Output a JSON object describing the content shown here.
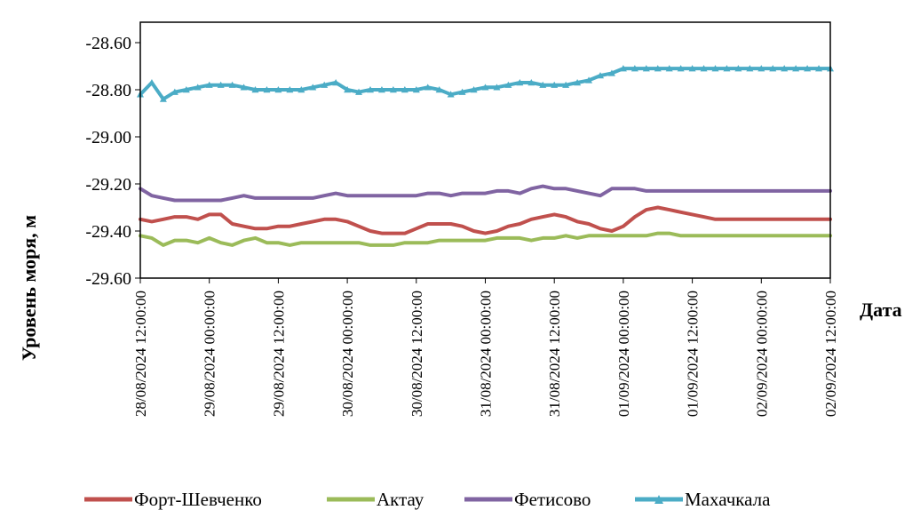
{
  "chart_data": {
    "type": "line",
    "title": "",
    "xlabel": "Дата",
    "ylabel": "Уровень моря, м",
    "ylim": [
      -29.6,
      -28.5
    ],
    "y_ticks": [
      "-28.60",
      "-28.80",
      "-29.00",
      "-29.20",
      "-29.40",
      "-29.60"
    ],
    "x_tick_labels": [
      "28/08/2024 12:00:00",
      "29/08/2024 00:00:00",
      "29/08/2024 12:00:00",
      "30/08/2024 00:00:00",
      "30/08/2024 12:00:00",
      "31/08/2024 00:00:00",
      "31/08/2024 12:00:00",
      "01/09/2024 00:00:00",
      "01/09/2024 12:00:00",
      "02/09/2024 00:00:00",
      "02/09/2024 12:00:00"
    ],
    "x_hours": [
      0,
      2,
      4,
      6,
      8,
      10,
      12,
      14,
      16,
      18,
      20,
      22,
      24,
      26,
      28,
      30,
      32,
      34,
      36,
      38,
      40,
      42,
      44,
      46,
      48,
      50,
      52,
      54,
      56,
      58,
      60,
      62,
      64,
      66,
      68,
      70,
      72,
      74,
      76,
      78,
      80,
      82,
      84,
      86,
      88,
      90,
      92,
      94,
      96,
      98,
      100,
      102,
      104,
      106,
      108,
      110,
      112,
      114,
      116,
      118,
      120
    ],
    "grid": false,
    "legend_position": "bottom",
    "series": [
      {
        "name": "Форт-Шевченко",
        "color": "#C0504D",
        "marker": "none",
        "values": [
          -29.35,
          -29.36,
          -29.35,
          -29.34,
          -29.34,
          -29.35,
          -29.33,
          -29.33,
          -29.37,
          -29.38,
          -29.39,
          -29.39,
          -29.38,
          -29.38,
          -29.37,
          -29.36,
          -29.35,
          -29.35,
          -29.36,
          -29.38,
          -29.4,
          -29.41,
          -29.41,
          -29.41,
          -29.39,
          -29.37,
          -29.37,
          -29.37,
          -29.38,
          -29.4,
          -29.41,
          -29.4,
          -29.38,
          -29.37,
          -29.35,
          -29.34,
          -29.33,
          -29.34,
          -29.36,
          -29.37,
          -29.39,
          -29.4,
          -29.38,
          -29.34,
          -29.31,
          -29.3,
          -29.31,
          -29.32,
          -29.33,
          -29.34,
          -29.35,
          -29.35,
          -29.35,
          -29.35,
          -29.35,
          -29.35,
          -29.35,
          -29.35,
          -29.35,
          -29.35,
          -29.35
        ]
      },
      {
        "name": "Актау",
        "color": "#9BBB59",
        "marker": "none",
        "values": [
          -29.42,
          -29.43,
          -29.46,
          -29.44,
          -29.44,
          -29.45,
          -29.43,
          -29.45,
          -29.46,
          -29.44,
          -29.43,
          -29.45,
          -29.45,
          -29.46,
          -29.45,
          -29.45,
          -29.45,
          -29.45,
          -29.45,
          -29.45,
          -29.46,
          -29.46,
          -29.46,
          -29.45,
          -29.45,
          -29.45,
          -29.44,
          -29.44,
          -29.44,
          -29.44,
          -29.44,
          -29.43,
          -29.43,
          -29.43,
          -29.44,
          -29.43,
          -29.43,
          -29.42,
          -29.43,
          -29.42,
          -29.42,
          -29.42,
          -29.42,
          -29.42,
          -29.42,
          -29.41,
          -29.41,
          -29.42,
          -29.42,
          -29.42,
          -29.42,
          -29.42,
          -29.42,
          -29.42,
          -29.42,
          -29.42,
          -29.42,
          -29.42,
          -29.42,
          -29.42,
          -29.42
        ]
      },
      {
        "name": "Фетисово",
        "color": "#8064A2",
        "marker": "none",
        "values": [
          -29.22,
          -29.25,
          -29.26,
          -29.27,
          -29.27,
          -29.27,
          -29.27,
          -29.27,
          -29.26,
          -29.25,
          -29.26,
          -29.26,
          -29.26,
          -29.26,
          -29.26,
          -29.26,
          -29.25,
          -29.24,
          -29.25,
          -29.25,
          -29.25,
          -29.25,
          -29.25,
          -29.25,
          -29.25,
          -29.24,
          -29.24,
          -29.25,
          -29.24,
          -29.24,
          -29.24,
          -29.23,
          -29.23,
          -29.24,
          -29.22,
          -29.21,
          -29.22,
          -29.22,
          -29.23,
          -29.24,
          -29.25,
          -29.22,
          -29.22,
          -29.22,
          -29.23,
          -29.23,
          -29.23,
          -29.23,
          -29.23,
          -29.23,
          -29.23,
          -29.23,
          -29.23,
          -29.23,
          -29.23,
          -29.23,
          -29.23,
          -29.23,
          -29.23,
          -29.23,
          -29.23
        ]
      },
      {
        "name": "Махачкала",
        "color": "#4BACC6",
        "marker": "triangle",
        "values": [
          -28.82,
          -28.77,
          -28.84,
          -28.81,
          -28.8,
          -28.79,
          -28.78,
          -28.78,
          -28.78,
          -28.79,
          -28.8,
          -28.8,
          -28.8,
          -28.8,
          -28.8,
          -28.79,
          -28.78,
          -28.77,
          -28.8,
          -28.81,
          -28.8,
          -28.8,
          -28.8,
          -28.8,
          -28.8,
          -28.79,
          -28.8,
          -28.82,
          -28.81,
          -28.8,
          -28.79,
          -28.79,
          -28.78,
          -28.77,
          -28.77,
          -28.78,
          -28.78,
          -28.78,
          -28.77,
          -28.76,
          -28.74,
          -28.73,
          -28.71,
          -28.71,
          -28.71,
          -28.71,
          -28.71,
          -28.71,
          -28.71,
          -28.71,
          -28.71,
          -28.71,
          -28.71,
          -28.71,
          -28.71,
          -28.71,
          -28.71,
          -28.71,
          -28.71,
          -28.71,
          -28.71
        ]
      }
    ]
  }
}
